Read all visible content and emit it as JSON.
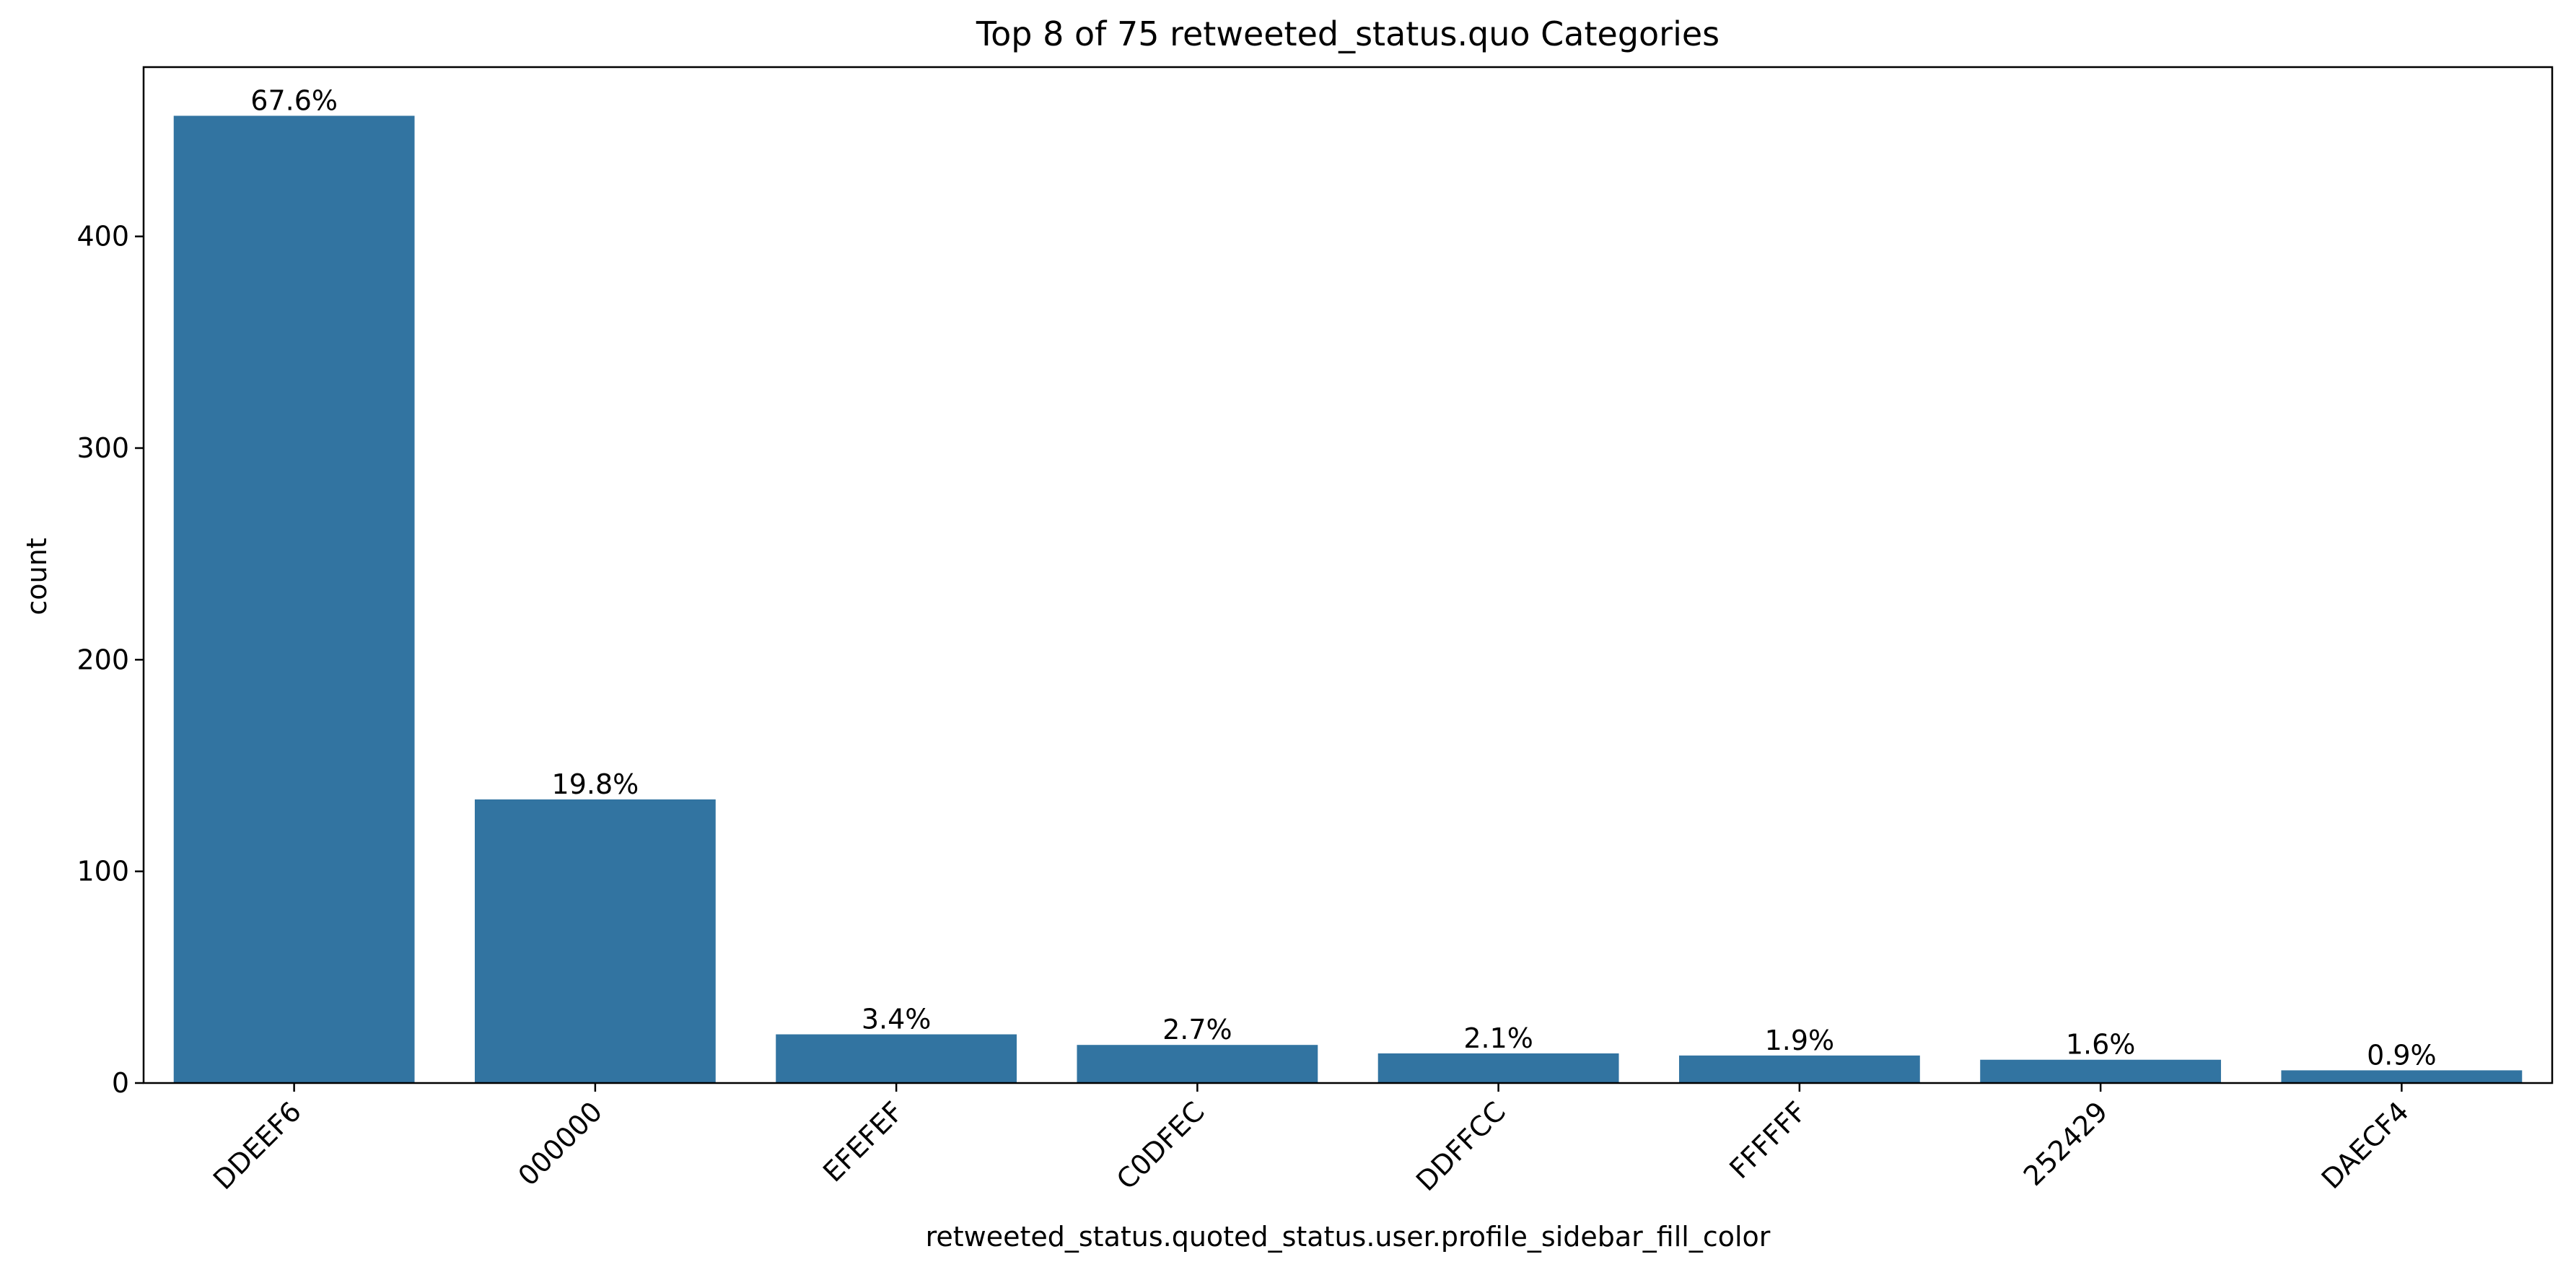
{
  "chart_data": {
    "type": "bar",
    "title": "Top 8 of 75 retweeted_status.quo Categories",
    "xlabel": "retweeted_status.quoted_status.user.profile_sidebar_fill_color",
    "ylabel": "count",
    "categories": [
      "DDEEF6",
      "000000",
      "EFEFEF",
      "C0DFEC",
      "DDFFCC",
      "FFFFFF",
      "252429",
      "DAECF4"
    ],
    "values": [
      457,
      134,
      23,
      18,
      14,
      13,
      11,
      6
    ],
    "data_labels": [
      "67.6%",
      "19.8%",
      "3.4%",
      "2.7%",
      "2.1%",
      "1.9%",
      "1.6%",
      "0.9%"
    ],
    "ylim": [
      0,
      480
    ],
    "yticks": [
      0,
      100,
      200,
      300,
      400
    ],
    "bar_color": "#3274a1",
    "grid": false,
    "legend": "none"
  }
}
